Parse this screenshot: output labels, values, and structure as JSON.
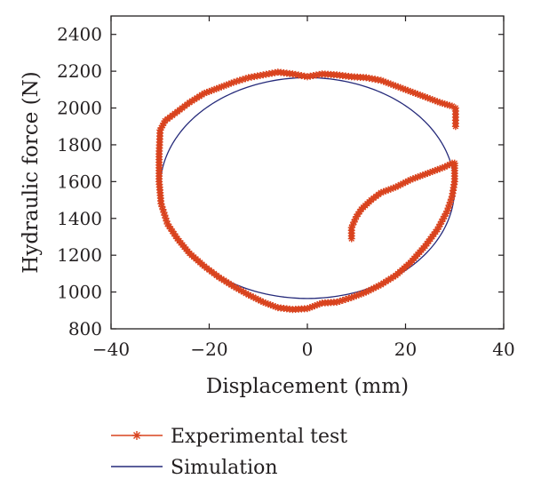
{
  "chart_data": {
    "type": "line",
    "xlabel": "Displacement (mm)",
    "ylabel": "Hydraulic force (N)",
    "xlim": [
      -40,
      40
    ],
    "ylim": [
      800,
      2500
    ],
    "xticks": [
      -40,
      -20,
      0,
      20,
      40
    ],
    "yticks": [
      800,
      1000,
      1200,
      1400,
      1600,
      1800,
      2000,
      2200,
      2400
    ],
    "xtick_labels": [
      "−40",
      "−20",
      "0",
      "20",
      "40"
    ],
    "ytick_labels": [
      "800",
      "1000",
      "1200",
      "1400",
      "1600",
      "1800",
      "2000",
      "2200",
      "2400"
    ],
    "grid": false,
    "legend_position": "below",
    "series": [
      {
        "name": "Experimental test",
        "color": "#d9431e",
        "marker": "asterisk",
        "x": [
          9,
          9,
          10,
          11,
          13,
          15,
          18,
          21,
          24,
          26,
          28,
          29.5,
          30,
          30,
          30,
          29.5,
          28.5,
          26.5,
          24,
          21,
          18,
          15,
          12,
          9,
          6,
          3,
          0,
          -3,
          -6,
          -9,
          -12,
          -15,
          -18,
          -21,
          -24,
          -26.5,
          -28.5,
          -29.8,
          -30.2,
          -30.2,
          -30,
          -29,
          -27,
          -24,
          -21,
          -18,
          -15,
          -12,
          -9,
          -6,
          -3,
          0,
          3,
          6,
          9,
          12,
          15,
          18,
          21,
          24,
          27,
          29.5,
          30.2,
          30.2
        ],
        "y": [
          1290,
          1350,
          1410,
          1450,
          1500,
          1540,
          1570,
          1610,
          1640,
          1660,
          1680,
          1700,
          1700,
          1660,
          1600,
          1520,
          1440,
          1340,
          1250,
          1160,
          1090,
          1040,
          1000,
          970,
          945,
          940,
          910,
          905,
          915,
          945,
          985,
          1030,
          1080,
          1140,
          1210,
          1290,
          1370,
          1480,
          1600,
          1750,
          1880,
          1930,
          1970,
          2030,
          2080,
          2110,
          2140,
          2165,
          2180,
          2195,
          2185,
          2170,
          2185,
          2180,
          2170,
          2165,
          2150,
          2120,
          2090,
          2060,
          2030,
          2010,
          2000,
          1900
        ]
      },
      {
        "name": "Simulation",
        "color": "#252a7a",
        "marker": "none",
        "center_x": 0,
        "center_y": 1565,
        "amplitude_x": 30,
        "amplitude_y": 600
      }
    ]
  }
}
